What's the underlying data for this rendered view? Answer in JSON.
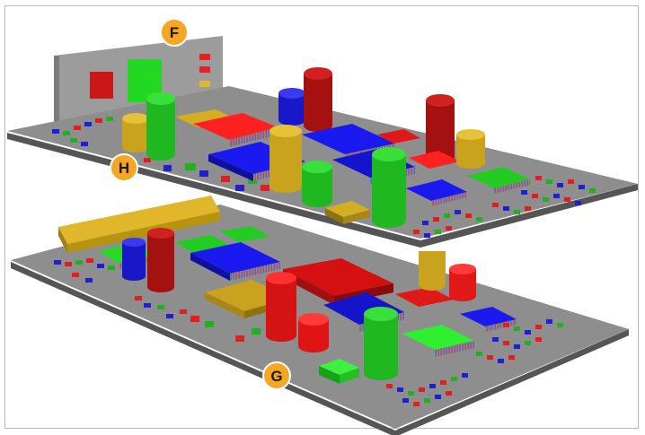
{
  "callouts": {
    "f": "F",
    "h": "H",
    "g": "G"
  },
  "colors": {
    "board": "#8c8c8c",
    "board_side": "#5f5f5f",
    "panel": "#9a9a9a",
    "red": "#e8181b",
    "dark_red": "#a11414",
    "green": "#18c018",
    "blue": "#1414d8",
    "gold": "#c8a21c",
    "callout_fill": "#f5a623",
    "callout_stroke": "#ffffff"
  }
}
